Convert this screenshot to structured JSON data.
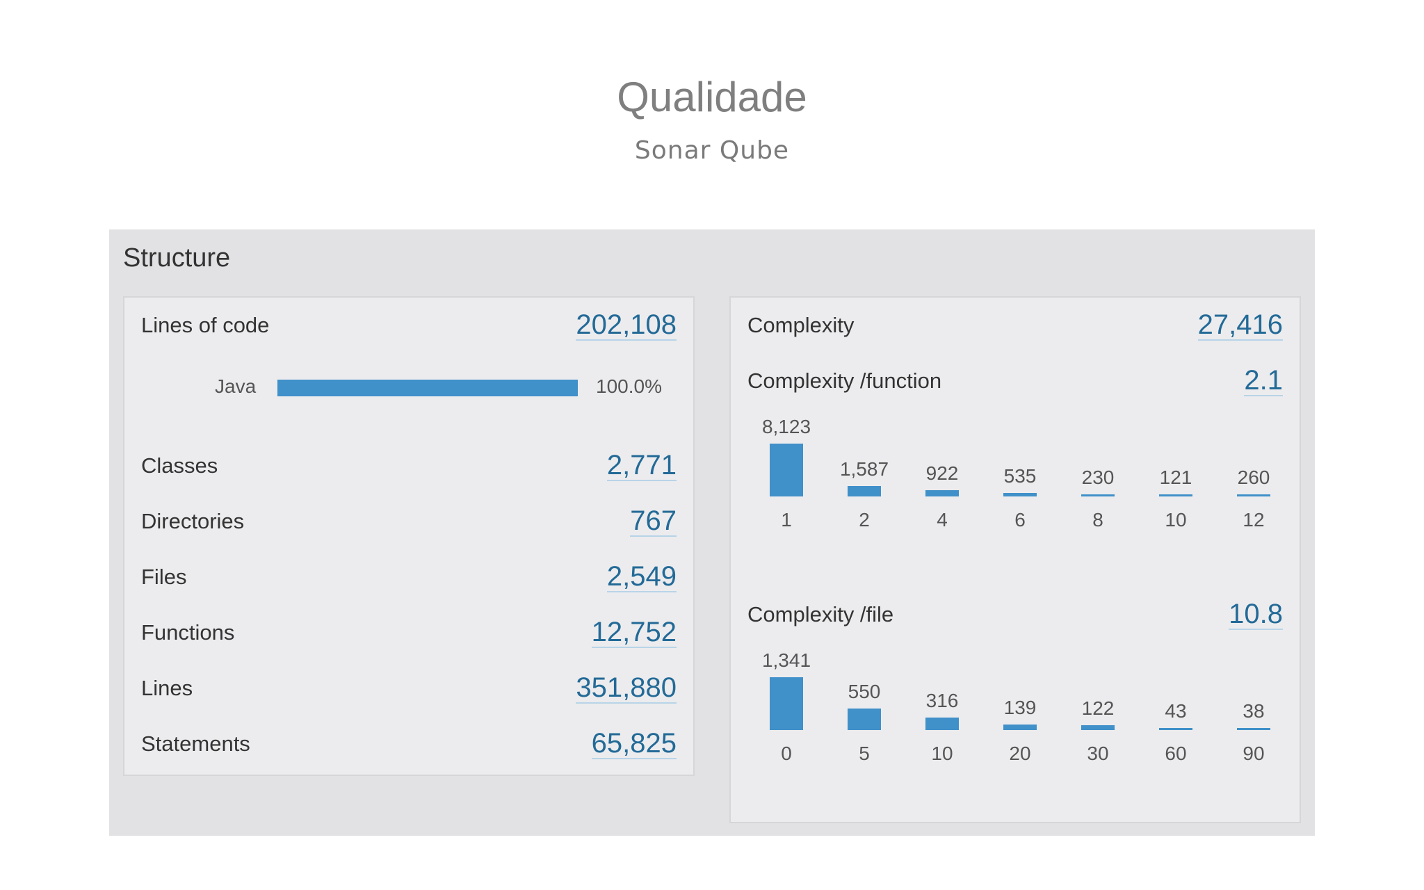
{
  "slide": {
    "title": "Qualidade",
    "subtitle": "Sonar Qube"
  },
  "structure": {
    "heading": "Structure",
    "left": {
      "lines_of_code": {
        "label": "Lines of code",
        "value": "202,108"
      },
      "language": {
        "name": "Java",
        "percent_label": "100.0%",
        "percent": 100
      },
      "metrics": [
        {
          "label": "Classes",
          "value": "2,771"
        },
        {
          "label": "Directories",
          "value": "767"
        },
        {
          "label": "Files",
          "value": "2,549"
        },
        {
          "label": "Functions",
          "value": "12,752"
        },
        {
          "label": "Lines",
          "value": "351,880"
        },
        {
          "label": "Statements",
          "value": "65,825"
        }
      ]
    },
    "right": {
      "complexity": {
        "label": "Complexity",
        "value": "27,416"
      },
      "per_function": {
        "label": "Complexity /function",
        "value": "2.1",
        "buckets": [
          "1",
          "2",
          "4",
          "6",
          "8",
          "10",
          "12"
        ],
        "counts": [
          8123,
          1587,
          922,
          535,
          230,
          121,
          260
        ],
        "count_labels": [
          "8,123",
          "1,587",
          "922",
          "535",
          "230",
          "121",
          "260"
        ]
      },
      "per_file": {
        "label": "Complexity /file",
        "value": "10.8",
        "buckets": [
          "0",
          "5",
          "10",
          "20",
          "30",
          "60",
          "90"
        ],
        "counts": [
          1341,
          550,
          316,
          139,
          122,
          43,
          38
        ],
        "count_labels": [
          "1,341",
          "550",
          "316",
          "139",
          "122",
          "43",
          "38"
        ]
      }
    },
    "accent_color": "#4090c9",
    "value_color": "#236a97"
  }
}
